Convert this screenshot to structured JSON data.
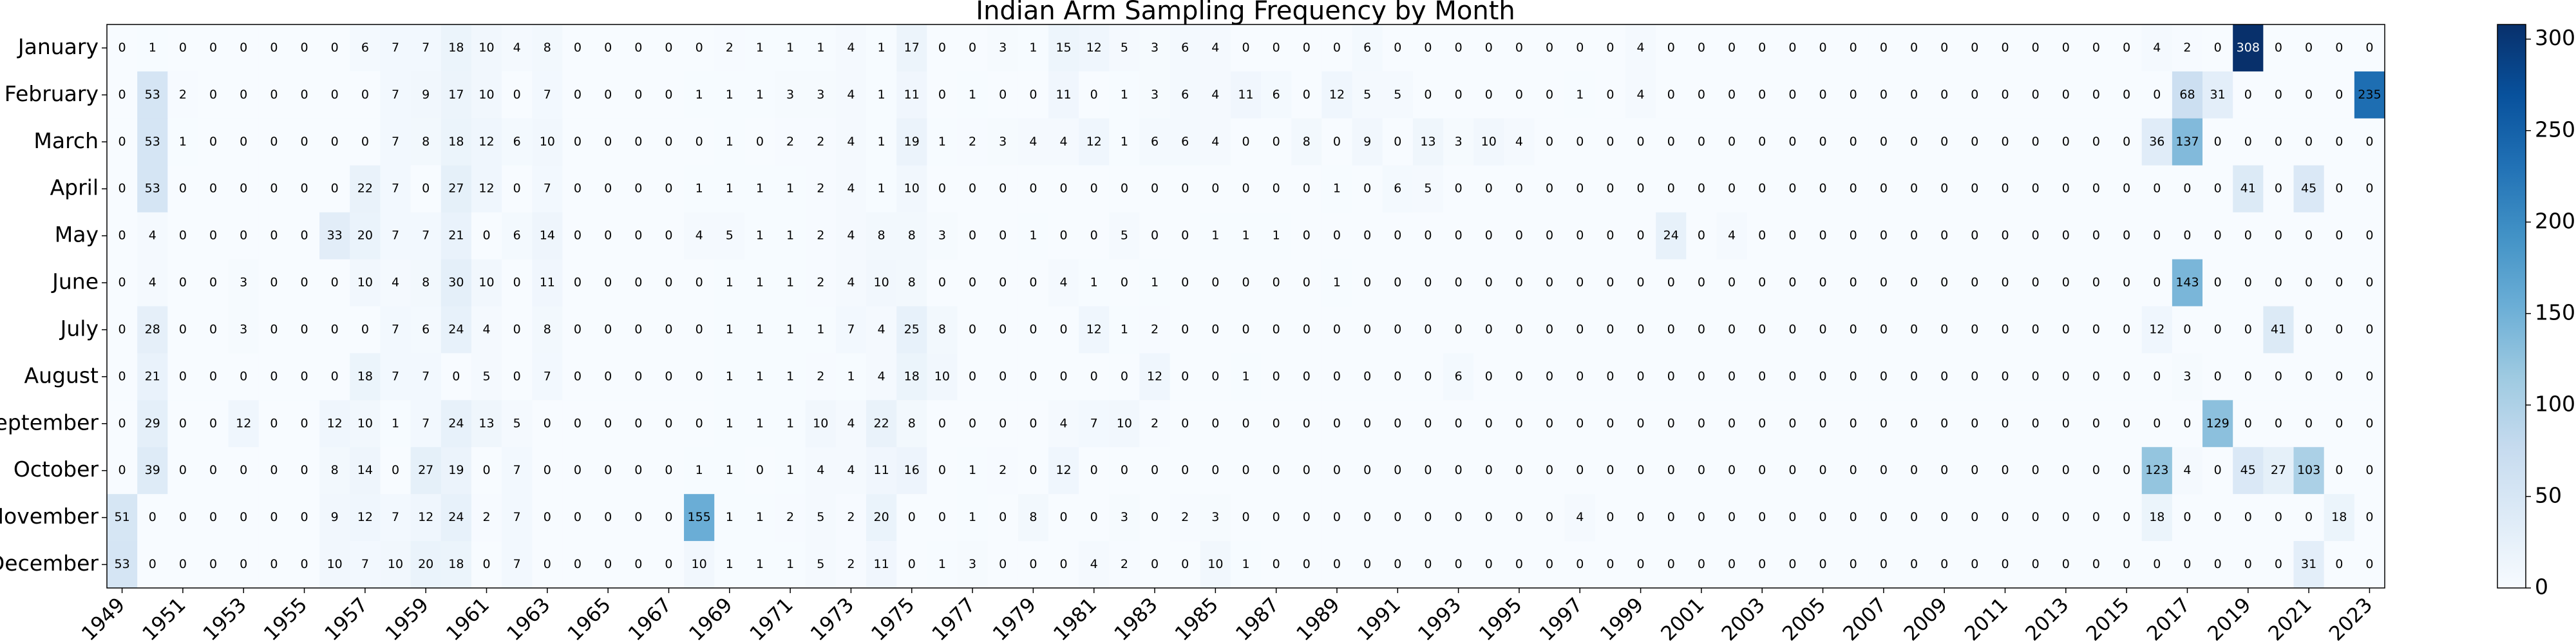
{
  "chart_data": {
    "type": "heatmap",
    "title": "Indian Arm Sampling Frequency by Month",
    "colormap": "Blues",
    "categories": [
      "January",
      "February",
      "March",
      "April",
      "May",
      "June",
      "July",
      "August",
      "September",
      "October",
      "November",
      "December"
    ],
    "x": [
      "1949",
      null,
      "1951",
      null,
      "1953",
      null,
      "1955",
      null,
      "1957",
      null,
      "1959",
      null,
      "1961",
      null,
      "1963",
      null,
      "1965",
      null,
      "1967",
      null,
      "1969",
      null,
      "1971",
      null,
      "1973",
      null,
      "1975",
      null,
      "1977",
      null,
      "1979",
      null,
      "1981",
      null,
      "1983",
      null,
      "1985",
      null,
      "1987",
      null,
      "1989",
      null,
      "1991",
      null,
      "1993",
      null,
      "1995",
      null,
      "1997",
      null,
      "1999",
      null,
      "2001",
      null,
      "2003",
      null,
      "2005",
      null,
      "2007",
      null,
      "2009",
      null,
      "2011",
      null,
      "2013",
      null,
      "2015",
      null,
      "2017",
      null,
      "2019",
      null,
      "2021",
      null,
      "2023"
    ],
    "values": [
      [
        0,
        1,
        0,
        0,
        0,
        0,
        0,
        0,
        6,
        7,
        7,
        18,
        10,
        4,
        8,
        0,
        0,
        0,
        0,
        0,
        2,
        1,
        1,
        1,
        4,
        1,
        17,
        0,
        0,
        3,
        1,
        15,
        12,
        5,
        3,
        6,
        4,
        0,
        0,
        0,
        0,
        6,
        0,
        0,
        0,
        0,
        0,
        0,
        0,
        0,
        4,
        0,
        0,
        0,
        0,
        0,
        0,
        0,
        0,
        0,
        0,
        0,
        0,
        0,
        0,
        0,
        0,
        4,
        2,
        0,
        308,
        0,
        0,
        0,
        0
      ],
      [
        0,
        53,
        2,
        0,
        0,
        0,
        0,
        0,
        0,
        7,
        9,
        17,
        10,
        0,
        7,
        0,
        0,
        0,
        0,
        1,
        1,
        1,
        3,
        3,
        4,
        1,
        11,
        0,
        1,
        0,
        0,
        11,
        0,
        1,
        3,
        6,
        4,
        11,
        6,
        0,
        12,
        5,
        5,
        0,
        0,
        0,
        0,
        0,
        1,
        0,
        4,
        0,
        0,
        0,
        0,
        0,
        0,
        0,
        0,
        0,
        0,
        0,
        0,
        0,
        0,
        0,
        0,
        0,
        68,
        31,
        0,
        0,
        0,
        0,
        235
      ],
      [
        0,
        53,
        1,
        0,
        0,
        0,
        0,
        0,
        0,
        7,
        8,
        18,
        12,
        6,
        10,
        0,
        0,
        0,
        0,
        0,
        1,
        0,
        2,
        2,
        4,
        1,
        19,
        1,
        2,
        3,
        4,
        4,
        12,
        1,
        6,
        6,
        4,
        0,
        0,
        8,
        0,
        9,
        0,
        13,
        3,
        10,
        4,
        0,
        0,
        0,
        0,
        0,
        0,
        0,
        0,
        0,
        0,
        0,
        0,
        0,
        0,
        0,
        0,
        0,
        0,
        0,
        0,
        36,
        137,
        0,
        0,
        0,
        0,
        0,
        0
      ],
      [
        0,
        53,
        0,
        0,
        0,
        0,
        0,
        0,
        22,
        7,
        0,
        27,
        12,
        0,
        7,
        0,
        0,
        0,
        0,
        1,
        1,
        1,
        1,
        2,
        4,
        1,
        10,
        0,
        0,
        0,
        0,
        0,
        0,
        0,
        0,
        0,
        0,
        0,
        0,
        0,
        1,
        0,
        6,
        5,
        0,
        0,
        0,
        0,
        0,
        0,
        0,
        0,
        0,
        0,
        0,
        0,
        0,
        0,
        0,
        0,
        0,
        0,
        0,
        0,
        0,
        0,
        0,
        0,
        0,
        0,
        41,
        0,
        45,
        0,
        0
      ],
      [
        0,
        4,
        0,
        0,
        0,
        0,
        0,
        33,
        20,
        7,
        7,
        21,
        0,
        6,
        14,
        0,
        0,
        0,
        0,
        4,
        5,
        1,
        1,
        2,
        4,
        8,
        8,
        3,
        0,
        0,
        1,
        0,
        0,
        5,
        0,
        0,
        1,
        1,
        1,
        0,
        0,
        0,
        0,
        0,
        0,
        0,
        0,
        0,
        0,
        0,
        0,
        24,
        0,
        4,
        0,
        0,
        0,
        0,
        0,
        0,
        0,
        0,
        0,
        0,
        0,
        0,
        0,
        0,
        0,
        0,
        0,
        0,
        0,
        0,
        0
      ],
      [
        0,
        4,
        0,
        0,
        3,
        0,
        0,
        0,
        10,
        4,
        8,
        30,
        10,
        0,
        11,
        0,
        0,
        0,
        0,
        0,
        1,
        1,
        1,
        2,
        4,
        10,
        8,
        0,
        0,
        0,
        0,
        4,
        1,
        0,
        1,
        0,
        0,
        0,
        0,
        0,
        1,
        0,
        0,
        0,
        0,
        0,
        0,
        0,
        0,
        0,
        0,
        0,
        0,
        0,
        0,
        0,
        0,
        0,
        0,
        0,
        0,
        0,
        0,
        0,
        0,
        0,
        0,
        0,
        143,
        0,
        0,
        0,
        0,
        0,
        0
      ],
      [
        0,
        28,
        0,
        0,
        3,
        0,
        0,
        0,
        0,
        7,
        6,
        24,
        4,
        0,
        8,
        0,
        0,
        0,
        0,
        0,
        1,
        1,
        1,
        1,
        7,
        4,
        25,
        8,
        0,
        0,
        0,
        0,
        12,
        1,
        2,
        0,
        0,
        0,
        0,
        0,
        0,
        0,
        0,
        0,
        0,
        0,
        0,
        0,
        0,
        0,
        0,
        0,
        0,
        0,
        0,
        0,
        0,
        0,
        0,
        0,
        0,
        0,
        0,
        0,
        0,
        0,
        0,
        12,
        0,
        0,
        0,
        41,
        0,
        0,
        0
      ],
      [
        0,
        21,
        0,
        0,
        0,
        0,
        0,
        0,
        18,
        7,
        7,
        0,
        5,
        0,
        7,
        0,
        0,
        0,
        0,
        0,
        1,
        1,
        1,
        2,
        1,
        4,
        18,
        10,
        0,
        0,
        0,
        0,
        0,
        0,
        12,
        0,
        0,
        1,
        0,
        0,
        0,
        0,
        0,
        0,
        6,
        0,
        0,
        0,
        0,
        0,
        0,
        0,
        0,
        0,
        0,
        0,
        0,
        0,
        0,
        0,
        0,
        0,
        0,
        0,
        0,
        0,
        0,
        0,
        3,
        0,
        0,
        0,
        0,
        0,
        0
      ],
      [
        0,
        29,
        0,
        0,
        12,
        0,
        0,
        12,
        10,
        1,
        7,
        24,
        13,
        5,
        0,
        0,
        0,
        0,
        0,
        0,
        1,
        1,
        1,
        10,
        4,
        22,
        8,
        0,
        0,
        0,
        0,
        4,
        7,
        10,
        2,
        0,
        0,
        0,
        0,
        0,
        0,
        0,
        0,
        0,
        0,
        0,
        0,
        0,
        0,
        0,
        0,
        0,
        0,
        0,
        0,
        0,
        0,
        0,
        0,
        0,
        0,
        0,
        0,
        0,
        0,
        0,
        0,
        0,
        0,
        129,
        0,
        0,
        0,
        0,
        0
      ],
      [
        0,
        39,
        0,
        0,
        0,
        0,
        0,
        8,
        14,
        0,
        27,
        19,
        0,
        7,
        0,
        0,
        0,
        0,
        0,
        1,
        1,
        0,
        1,
        4,
        4,
        11,
        16,
        0,
        1,
        2,
        0,
        12,
        0,
        0,
        0,
        0,
        0,
        0,
        0,
        0,
        0,
        0,
        0,
        0,
        0,
        0,
        0,
        0,
        0,
        0,
        0,
        0,
        0,
        0,
        0,
        0,
        0,
        0,
        0,
        0,
        0,
        0,
        0,
        0,
        0,
        0,
        0,
        123,
        4,
        0,
        45,
        27,
        103,
        0,
        0
      ],
      [
        51,
        0,
        0,
        0,
        0,
        0,
        0,
        9,
        12,
        7,
        12,
        24,
        2,
        7,
        0,
        0,
        0,
        0,
        0,
        155,
        1,
        1,
        2,
        5,
        2,
        20,
        0,
        0,
        1,
        0,
        8,
        0,
        0,
        3,
        0,
        2,
        3,
        0,
        0,
        0,
        0,
        0,
        0,
        0,
        0,
        0,
        0,
        0,
        4,
        0,
        0,
        0,
        0,
        0,
        0,
        0,
        0,
        0,
        0,
        0,
        0,
        0,
        0,
        0,
        0,
        0,
        0,
        18,
        0,
        0,
        0,
        0,
        0,
        18,
        0
      ],
      [
        53,
        0,
        0,
        0,
        0,
        0,
        0,
        10,
        7,
        10,
        20,
        18,
        0,
        7,
        0,
        0,
        0,
        0,
        0,
        10,
        1,
        1,
        1,
        5,
        2,
        11,
        0,
        1,
        3,
        0,
        0,
        0,
        4,
        2,
        0,
        0,
        10,
        1,
        0,
        0,
        0,
        0,
        0,
        0,
        0,
        0,
        0,
        0,
        0,
        0,
        0,
        0,
        0,
        0,
        0,
        0,
        0,
        0,
        0,
        0,
        0,
        0,
        0,
        0,
        0,
        0,
        0,
        0,
        0,
        0,
        0,
        0,
        31,
        0,
        0
      ]
    ],
    "zlim": [
      0,
      308
    ],
    "zticks": [
      0,
      50,
      100,
      150,
      200,
      250,
      300
    ]
  }
}
